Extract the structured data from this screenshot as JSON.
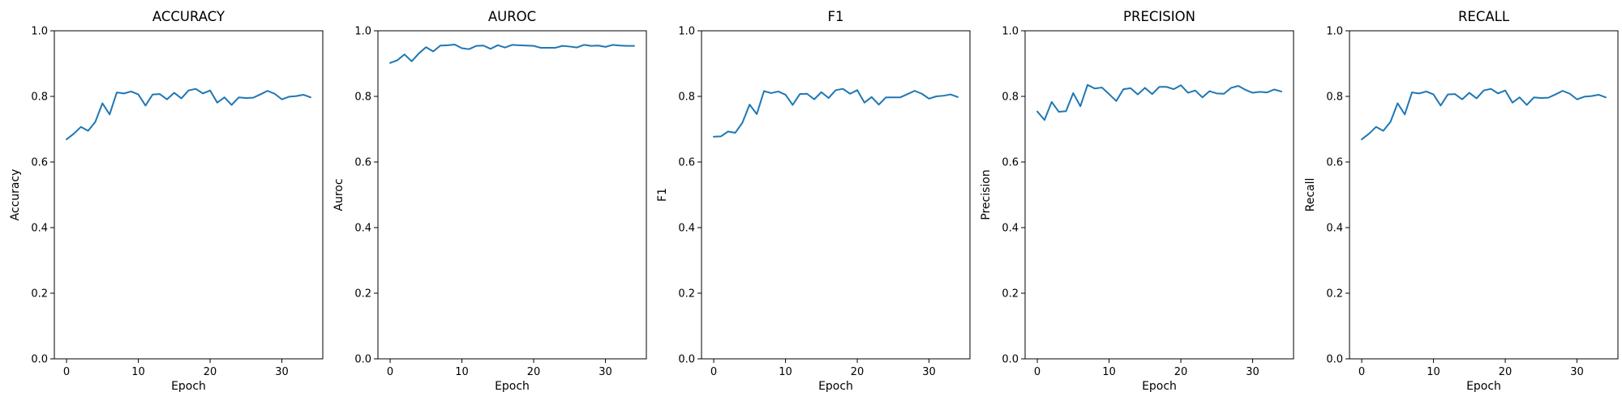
{
  "chart_data": [
    {
      "type": "line",
      "title": "ACCURACY",
      "xlabel": "Epoch",
      "ylabel": "Accuracy",
      "xlim": [
        -1.7,
        35.7
      ],
      "ylim": [
        0.0,
        1.0
      ],
      "xticks": [
        0,
        10,
        20,
        30
      ],
      "yticks": [
        0.0,
        0.2,
        0.4,
        0.6,
        0.8,
        1.0
      ],
      "grid": false,
      "series": [
        {
          "color": "#1f77b4",
          "x": [
            0,
            1,
            2,
            3,
            4,
            5,
            6,
            7,
            8,
            9,
            10,
            11,
            12,
            13,
            14,
            15,
            16,
            17,
            18,
            19,
            20,
            21,
            22,
            23,
            24,
            25,
            26,
            27,
            28,
            29,
            30,
            31,
            32,
            33,
            34
          ],
          "values": [
            0.669,
            0.686,
            0.707,
            0.695,
            0.722,
            0.779,
            0.745,
            0.812,
            0.809,
            0.815,
            0.806,
            0.772,
            0.806,
            0.807,
            0.791,
            0.811,
            0.794,
            0.818,
            0.823,
            0.809,
            0.818,
            0.781,
            0.797,
            0.774,
            0.797,
            0.795,
            0.796,
            0.806,
            0.817,
            0.808,
            0.791,
            0.799,
            0.801,
            0.805,
            0.797
          ]
        }
      ]
    },
    {
      "type": "line",
      "title": "AUROC",
      "xlabel": "Epoch",
      "ylabel": "Auroc",
      "xlim": [
        -1.7,
        35.7
      ],
      "ylim": [
        0.0,
        1.0
      ],
      "xticks": [
        0,
        10,
        20,
        30
      ],
      "yticks": [
        0.0,
        0.2,
        0.4,
        0.6,
        0.8,
        1.0
      ],
      "grid": false,
      "series": [
        {
          "color": "#1f77b4",
          "x": [
            0,
            1,
            2,
            3,
            4,
            5,
            6,
            7,
            8,
            9,
            10,
            11,
            12,
            13,
            14,
            15,
            16,
            17,
            18,
            19,
            20,
            21,
            22,
            23,
            24,
            25,
            26,
            27,
            28,
            29,
            30,
            31,
            32,
            33,
            34
          ],
          "values": [
            0.902,
            0.91,
            0.928,
            0.907,
            0.931,
            0.95,
            0.937,
            0.955,
            0.956,
            0.958,
            0.947,
            0.944,
            0.954,
            0.955,
            0.945,
            0.956,
            0.949,
            0.957,
            0.956,
            0.955,
            0.954,
            0.948,
            0.948,
            0.948,
            0.954,
            0.952,
            0.949,
            0.957,
            0.954,
            0.955,
            0.951,
            0.957,
            0.955,
            0.954,
            0.954
          ]
        }
      ]
    },
    {
      "type": "line",
      "title": "F1",
      "xlabel": "Epoch",
      "ylabel": "F1",
      "xlim": [
        -1.7,
        35.7
      ],
      "ylim": [
        0.0,
        1.0
      ],
      "xticks": [
        0,
        10,
        20,
        30
      ],
      "yticks": [
        0.0,
        0.2,
        0.4,
        0.6,
        0.8,
        1.0
      ],
      "grid": false,
      "series": [
        {
          "color": "#1f77b4",
          "x": [
            0,
            1,
            2,
            3,
            4,
            5,
            6,
            7,
            8,
            9,
            10,
            11,
            12,
            13,
            14,
            15,
            16,
            17,
            18,
            19,
            20,
            21,
            22,
            23,
            24,
            25,
            26,
            27,
            28,
            29,
            30,
            31,
            32,
            33,
            34
          ],
          "values": [
            0.677,
            0.678,
            0.693,
            0.689,
            0.72,
            0.775,
            0.746,
            0.816,
            0.81,
            0.815,
            0.805,
            0.774,
            0.807,
            0.808,
            0.791,
            0.813,
            0.795,
            0.819,
            0.823,
            0.808,
            0.819,
            0.781,
            0.798,
            0.775,
            0.797,
            0.797,
            0.797,
            0.807,
            0.817,
            0.808,
            0.793,
            0.8,
            0.802,
            0.806,
            0.798
          ]
        }
      ]
    },
    {
      "type": "line",
      "title": "PRECISION",
      "xlabel": "Epoch",
      "ylabel": "Precision",
      "xlim": [
        -1.7,
        35.7
      ],
      "ylim": [
        0.0,
        1.0
      ],
      "xticks": [
        0,
        10,
        20,
        30
      ],
      "yticks": [
        0.0,
        0.2,
        0.4,
        0.6,
        0.8,
        1.0
      ],
      "grid": false,
      "series": [
        {
          "color": "#1f77b4",
          "x": [
            0,
            1,
            2,
            3,
            4,
            5,
            6,
            7,
            8,
            9,
            10,
            11,
            12,
            13,
            14,
            15,
            16,
            17,
            18,
            19,
            20,
            21,
            22,
            23,
            24,
            25,
            26,
            27,
            28,
            29,
            30,
            31,
            32,
            33,
            34
          ],
          "values": [
            0.754,
            0.728,
            0.783,
            0.753,
            0.755,
            0.81,
            0.77,
            0.835,
            0.824,
            0.827,
            0.807,
            0.786,
            0.822,
            0.825,
            0.806,
            0.826,
            0.807,
            0.829,
            0.829,
            0.822,
            0.834,
            0.811,
            0.818,
            0.797,
            0.816,
            0.809,
            0.808,
            0.826,
            0.832,
            0.82,
            0.811,
            0.814,
            0.812,
            0.821,
            0.815
          ]
        }
      ]
    },
    {
      "type": "line",
      "title": "RECALL",
      "xlabel": "Epoch",
      "ylabel": "Recall",
      "xlim": [
        -1.7,
        35.7
      ],
      "ylim": [
        0.0,
        1.0
      ],
      "xticks": [
        0,
        10,
        20,
        30
      ],
      "yticks": [
        0.0,
        0.2,
        0.4,
        0.6,
        0.8,
        1.0
      ],
      "grid": false,
      "series": [
        {
          "color": "#1f77b4",
          "x": [
            0,
            1,
            2,
            3,
            4,
            5,
            6,
            7,
            8,
            9,
            10,
            11,
            12,
            13,
            14,
            15,
            16,
            17,
            18,
            19,
            20,
            21,
            22,
            23,
            24,
            25,
            26,
            27,
            28,
            29,
            30,
            31,
            32,
            33,
            34
          ],
          "values": [
            0.669,
            0.686,
            0.707,
            0.695,
            0.722,
            0.779,
            0.745,
            0.812,
            0.809,
            0.815,
            0.806,
            0.772,
            0.806,
            0.807,
            0.791,
            0.811,
            0.794,
            0.818,
            0.823,
            0.809,
            0.818,
            0.781,
            0.797,
            0.774,
            0.797,
            0.795,
            0.796,
            0.806,
            0.817,
            0.808,
            0.791,
            0.799,
            0.801,
            0.805,
            0.797
          ]
        }
      ]
    }
  ]
}
